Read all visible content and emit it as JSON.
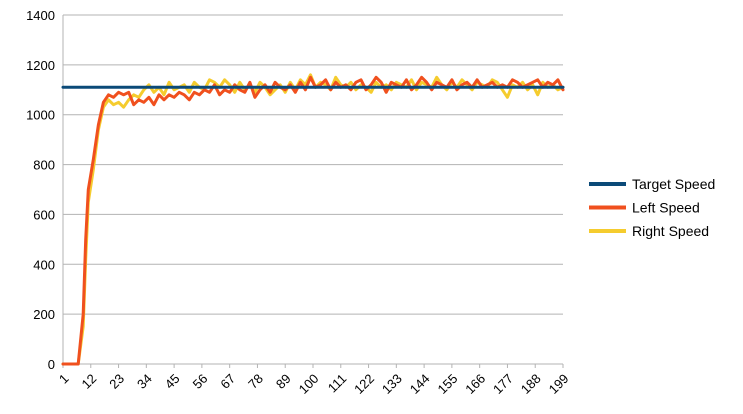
{
  "chart_data": {
    "type": "line",
    "title": "",
    "xlabel": "",
    "ylabel": "",
    "x_range": [
      1,
      199
    ],
    "x_tick_labels": [
      "1",
      "12",
      "23",
      "34",
      "45",
      "56",
      "67",
      "78",
      "89",
      "100",
      "111",
      "122",
      "133",
      "144",
      "155",
      "166",
      "177",
      "188",
      "199"
    ],
    "ylim": [
      0,
      1400
    ],
    "y_tick_labels": [
      "0",
      "200",
      "400",
      "600",
      "800",
      "1000",
      "1200",
      "1400"
    ],
    "grid": "horizontal",
    "legend_position": "right",
    "series": [
      {
        "name": "Target Speed",
        "color": "#0b4a78",
        "x": [
          1,
          199
        ],
        "values": [
          1110,
          1110
        ]
      },
      {
        "name": "Left Speed",
        "color": "#f0501e",
        "x": [
          1,
          3,
          5,
          7,
          9,
          10,
          11,
          13,
          15,
          17,
          19,
          21,
          23,
          25,
          27,
          29,
          31,
          33,
          35,
          37,
          39,
          41,
          43,
          45,
          47,
          49,
          51,
          53,
          55,
          57,
          59,
          61,
          63,
          65,
          67,
          69,
          71,
          73,
          75,
          77,
          79,
          81,
          83,
          85,
          87,
          89,
          91,
          93,
          95,
          97,
          99,
          101,
          103,
          105,
          107,
          109,
          111,
          113,
          115,
          117,
          119,
          121,
          123,
          125,
          127,
          129,
          131,
          133,
          135,
          137,
          139,
          141,
          143,
          145,
          147,
          149,
          151,
          153,
          155,
          157,
          159,
          161,
          163,
          165,
          167,
          169,
          171,
          173,
          175,
          177,
          179,
          181,
          183,
          185,
          187,
          189,
          191,
          193,
          195,
          197,
          199
        ],
        "values": [
          0,
          0,
          0,
          0,
          200,
          500,
          700,
          820,
          960,
          1050,
          1080,
          1070,
          1090,
          1080,
          1090,
          1040,
          1060,
          1050,
          1070,
          1040,
          1080,
          1060,
          1080,
          1070,
          1090,
          1080,
          1060,
          1090,
          1080,
          1100,
          1090,
          1120,
          1080,
          1100,
          1090,
          1120,
          1100,
          1090,
          1130,
          1070,
          1100,
          1120,
          1090,
          1130,
          1110,
          1100,
          1120,
          1090,
          1130,
          1100,
          1150,
          1110,
          1120,
          1140,
          1100,
          1130,
          1110,
          1120,
          1100,
          1130,
          1140,
          1100,
          1120,
          1150,
          1130,
          1090,
          1130,
          1120,
          1110,
          1140,
          1100,
          1120,
          1150,
          1130,
          1100,
          1130,
          1120,
          1110,
          1140,
          1100,
          1120,
          1130,
          1110,
          1140,
          1110,
          1120,
          1130,
          1110,
          1120,
          1110,
          1140,
          1130,
          1110,
          1120,
          1130,
          1140,
          1110,
          1130,
          1120,
          1140,
          1100
        ]
      },
      {
        "name": "Right Speed",
        "color": "#f5cc2e",
        "x": [
          1,
          3,
          5,
          7,
          9,
          10,
          11,
          13,
          15,
          17,
          19,
          21,
          23,
          25,
          27,
          29,
          31,
          33,
          35,
          37,
          39,
          41,
          43,
          45,
          47,
          49,
          51,
          53,
          55,
          57,
          59,
          61,
          63,
          65,
          67,
          69,
          71,
          73,
          75,
          77,
          79,
          81,
          83,
          85,
          87,
          89,
          91,
          93,
          95,
          97,
          99,
          101,
          103,
          105,
          107,
          109,
          111,
          113,
          115,
          117,
          119,
          121,
          123,
          125,
          127,
          129,
          131,
          133,
          135,
          137,
          139,
          141,
          143,
          145,
          147,
          149,
          151,
          153,
          155,
          157,
          159,
          161,
          163,
          165,
          167,
          169,
          171,
          173,
          175,
          177,
          179,
          181,
          183,
          185,
          187,
          189,
          191,
          193,
          195,
          197,
          199
        ],
        "values": [
          0,
          0,
          0,
          0,
          150,
          420,
          650,
          780,
          940,
          1030,
          1060,
          1040,
          1050,
          1030,
          1060,
          1080,
          1070,
          1100,
          1120,
          1090,
          1110,
          1080,
          1130,
          1100,
          1110,
          1120,
          1090,
          1130,
          1110,
          1100,
          1140,
          1130,
          1110,
          1140,
          1120,
          1090,
          1130,
          1100,
          1120,
          1090,
          1130,
          1110,
          1080,
          1100,
          1120,
          1090,
          1130,
          1100,
          1140,
          1120,
          1160,
          1110,
          1130,
          1120,
          1100,
          1150,
          1120,
          1110,
          1130,
          1100,
          1120,
          1110,
          1090,
          1130,
          1110,
          1120,
          1100,
          1130,
          1120,
          1110,
          1140,
          1100,
          1130,
          1120,
          1110,
          1150,
          1120,
          1100,
          1130,
          1110,
          1140,
          1120,
          1100,
          1130,
          1120,
          1110,
          1140,
          1130,
          1100,
          1070,
          1120,
          1110,
          1130,
          1100,
          1120,
          1080,
          1130,
          1110,
          1120,
          1100,
          1110
        ]
      }
    ]
  }
}
